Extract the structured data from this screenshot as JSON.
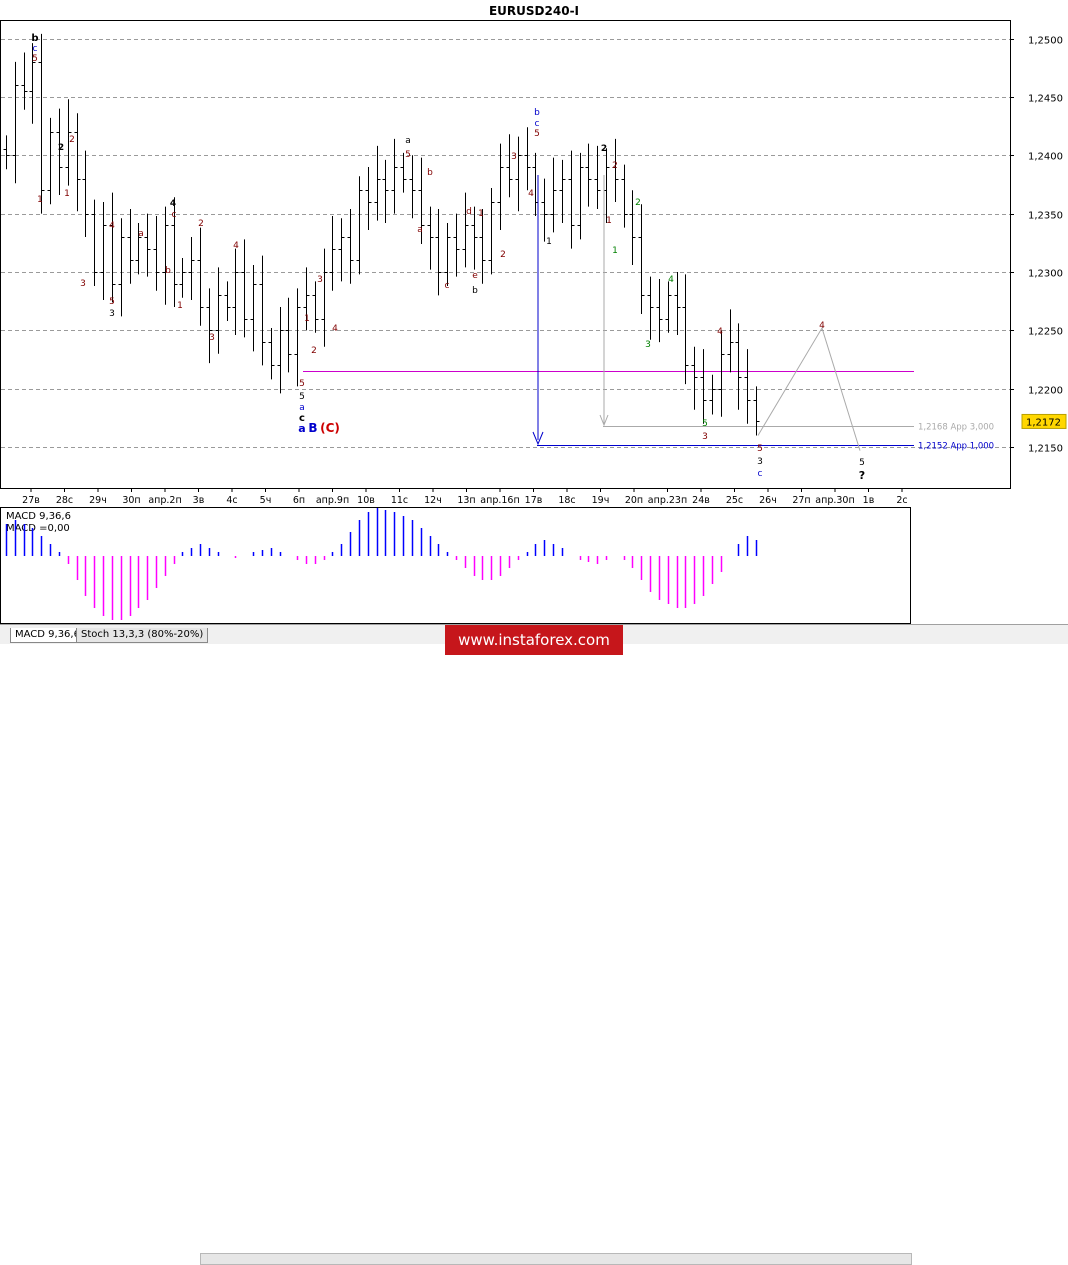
{
  "window": {
    "title": "EURUSD240-I",
    "colors": {
      "background": "#ffffff",
      "candle": "#000000",
      "grid": "#9a9a9a",
      "target_line": "#cc00cc",
      "blue": "#0000cc",
      "wave_dark": "#800000",
      "wave_green": "#008000",
      "wave_gray": "#999999",
      "price_tag": "#ffd700",
      "macd_pos": "#0000ff",
      "macd_neg": "#ff00ff"
    }
  },
  "chart_data": [
    {
      "type": "candlestick",
      "title": "EURUSD240-I",
      "ylim": [
        1.2115,
        1.2515
      ],
      "grid": true,
      "y_ticks": [
        "1,2500",
        "1,2450",
        "1,2400",
        "1,2350",
        "1,2300",
        "1,2250",
        "1,2200",
        "1,2150"
      ],
      "y_tick_values": [
        1.25,
        1.245,
        1.24,
        1.235,
        1.23,
        1.225,
        1.22,
        1.215
      ],
      "x_ticks": [
        "27в",
        "28с",
        "29ч",
        "30п",
        "апр.2п",
        "3в",
        "4с",
        "5ч",
        "6п",
        "апр.9п",
        "10в",
        "11с",
        "12ч",
        "13п",
        "апр.16п",
        "17в",
        "18с",
        "19ч",
        "20п",
        "апр.23п",
        "24в",
        "25с",
        "26ч",
        "27п",
        "апр.30п",
        "1в",
        "2с"
      ],
      "current_price": "1,2172",
      "current_price_value": 1.2172,
      "levels": [
        {
          "label": "1,2168 App 3,000",
          "value": 1.2168,
          "color": "#aaaaaa"
        },
        {
          "label": "1,2152 App 1,000",
          "value": 1.2152,
          "color": "#0000cc"
        },
        {
          "value": 1.2215,
          "color": "#cc00cc",
          "label": ""
        }
      ],
      "price_path": [
        1.24,
        1.246,
        1.2455,
        1.248,
        1.237,
        1.242,
        1.239,
        1.242,
        1.238,
        1.235,
        1.23,
        1.234,
        1.229,
        1.233,
        1.231,
        1.233,
        1.232,
        1.23,
        1.234,
        1.229,
        1.23,
        1.231,
        1.227,
        1.225,
        1.228,
        1.227,
        1.23,
        1.226,
        1.229,
        1.224,
        1.222,
        1.225,
        1.223,
        1.227,
        1.228,
        1.226,
        1.23,
        1.232,
        1.233,
        1.231,
        1.237,
        1.236,
        1.238,
        1.237,
        1.239,
        1.238,
        1.237,
        1.234,
        1.233,
        1.23,
        1.233,
        1.232,
        1.234,
        1.233,
        1.231,
        1.236,
        1.239,
        1.238,
        1.24,
        1.239,
        1.236,
        1.235,
        1.237,
        1.238,
        1.234,
        1.239,
        1.238,
        1.237,
        1.239,
        1.238,
        1.235,
        1.233,
        1.228,
        1.227,
        1.226,
        1.228,
        1.227,
        1.222,
        1.221,
        1.219,
        1.22,
        1.223,
        1.224,
        1.221,
        1.219,
        1.2172
      ],
      "macd": {
        "label_main": "MACD 9,36,6",
        "label_value": "MACD =0,00",
        "values": [
          0.8,
          0.9,
          0.8,
          0.7,
          0.5,
          0.3,
          0.1,
          -0.2,
          -0.6,
          -1.0,
          -1.3,
          -1.5,
          -1.6,
          -1.6,
          -1.5,
          -1.3,
          -1.1,
          -0.8,
          -0.5,
          -0.2,
          0.1,
          0.2,
          0.3,
          0.2,
          0.1,
          0.0,
          -0.05,
          0.0,
          0.1,
          0.15,
          0.2,
          0.1,
          0.0,
          -0.1,
          -0.2,
          -0.2,
          -0.1,
          0.1,
          0.3,
          0.6,
          0.9,
          1.1,
          1.2,
          1.15,
          1.1,
          1.0,
          0.9,
          0.7,
          0.5,
          0.3,
          0.1,
          -0.1,
          -0.3,
          -0.5,
          -0.6,
          -0.6,
          -0.5,
          -0.3,
          -0.1,
          0.1,
          0.3,
          0.4,
          0.3,
          0.2,
          0.0,
          -0.1,
          -0.15,
          -0.2,
          -0.1,
          0.0,
          -0.1,
          -0.3,
          -0.6,
          -0.9,
          -1.1,
          -1.2,
          -1.3,
          -1.3,
          -1.2,
          -1.0,
          -0.7,
          -0.4,
          0.0,
          0.3,
          0.5,
          0.4
        ]
      },
      "wave_labels": [
        {
          "text": "b",
          "color": "#000000"
        },
        {
          "text": "c",
          "color": "#0000cc"
        },
        {
          "text": "5",
          "color": "#800000"
        },
        {
          "text": "1",
          "color": "#800000"
        },
        {
          "text": "2",
          "color": "#000000"
        },
        {
          "text": "2",
          "color": "#800000"
        },
        {
          "text": "1",
          "color": "#800000"
        },
        {
          "text": "3",
          "color": "#800000"
        },
        {
          "text": "4",
          "color": "#800000"
        },
        {
          "text": "5",
          "color": "#800000"
        },
        {
          "text": "3",
          "color": "#000000"
        },
        {
          "text": "a",
          "color": "#800000"
        },
        {
          "text": "b",
          "color": "#800000"
        },
        {
          "text": "4",
          "color": "#000000"
        },
        {
          "text": "c",
          "color": "#800000"
        },
        {
          "text": "1",
          "color": "#800000"
        },
        {
          "text": "2",
          "color": "#800000"
        },
        {
          "text": "3",
          "color": "#800000"
        },
        {
          "text": "4",
          "color": "#800000"
        },
        {
          "text": "5",
          "color": "#800000"
        },
        {
          "text": "5",
          "color": "#000000"
        },
        {
          "text": "a",
          "color": "#0000cc"
        },
        {
          "text": "c",
          "color": "#000000"
        },
        {
          "text": "a",
          "color": "#0000cc"
        },
        {
          "text": "B",
          "color": "#0000cc"
        },
        {
          "text": "(C)",
          "color": "#cc0000"
        },
        {
          "text": "1",
          "color": "#800000"
        },
        {
          "text": "2",
          "color": "#800000"
        },
        {
          "text": "3",
          "color": "#800000"
        },
        {
          "text": "4",
          "color": "#800000"
        },
        {
          "text": "a",
          "color": "#000000"
        },
        {
          "text": "5",
          "color": "#800000"
        },
        {
          "text": "a",
          "color": "#800000"
        },
        {
          "text": "b",
          "color": "#800000"
        },
        {
          "text": "c",
          "color": "#800000"
        },
        {
          "text": "d",
          "color": "#800000"
        },
        {
          "text": "1",
          "color": "#800000"
        },
        {
          "text": "2",
          "color": "#800000"
        },
        {
          "text": "e",
          "color": "#800000"
        },
        {
          "text": "b",
          "color": "#000000"
        },
        {
          "text": "3",
          "color": "#800000"
        },
        {
          "text": "4",
          "color": "#800000"
        },
        {
          "text": "b",
          "color": "#0000cc"
        },
        {
          "text": "c",
          "color": "#0000cc"
        },
        {
          "text": "5",
          "color": "#800000"
        },
        {
          "text": "1",
          "color": "#000000"
        },
        {
          "text": "2",
          "color": "#000000"
        },
        {
          "text": "2",
          "color": "#800000"
        },
        {
          "text": "1",
          "color": "#800000"
        },
        {
          "text": "2",
          "color": "#008000"
        },
        {
          "text": "1",
          "color": "#008000"
        },
        {
          "text": "4",
          "color": "#008000"
        },
        {
          "text": "3",
          "color": "#008000"
        },
        {
          "text": "4",
          "color": "#800000"
        },
        {
          "text": "5",
          "color": "#008000"
        },
        {
          "text": "3",
          "color": "#800000"
        },
        {
          "text": "5",
          "color": "#800000"
        },
        {
          "text": "3",
          "color": "#000000"
        },
        {
          "text": "c",
          "color": "#0000cc"
        },
        {
          "text": "4",
          "color": "#800000"
        },
        {
          "text": "5",
          "color": "#000000"
        },
        {
          "text": "?",
          "color": "#000000"
        }
      ]
    }
  ],
  "tabs": [
    {
      "label": "MACD 9,36,6",
      "active": true
    },
    {
      "label": "Stoch 13,3,3 (80%-20%)",
      "active": false
    }
  ],
  "watermark": "www.instaforex.com"
}
